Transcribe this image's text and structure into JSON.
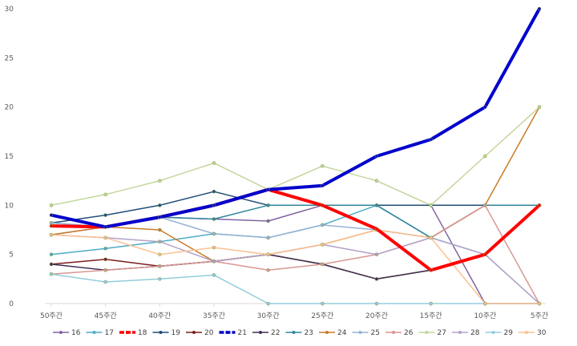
{
  "chart_data": {
    "type": "line",
    "title": "",
    "xlabel": "",
    "ylabel": "",
    "ylim": [
      0,
      30
    ],
    "yticks": [
      0,
      5,
      10,
      15,
      20,
      25,
      30
    ],
    "grid": false,
    "legend": "bottom",
    "categories": [
      "50주간",
      "45주간",
      "40주간",
      "35주간",
      "30주간",
      "25주간",
      "20주간",
      "15주간",
      "10주간",
      "5주간"
    ],
    "series": [
      {
        "name": "16",
        "color": "#8064A2",
        "width": 1.5,
        "values": [
          7,
          7.8,
          8.8,
          8.6,
          8.4,
          10,
          10,
          10,
          0,
          0
        ]
      },
      {
        "name": "17",
        "color": "#4BACC6",
        "width": 1.5,
        "values": [
          5,
          5.6,
          6.3,
          7.1,
          6.7,
          8,
          10,
          6.7,
          5,
          10
        ]
      },
      {
        "name": "18",
        "color": "#FF0000",
        "width": 4,
        "values": [
          7.9,
          7.8,
          8.8,
          10,
          11.6,
          10,
          7.6,
          3.4,
          5,
          10
        ]
      },
      {
        "name": "19",
        "color": "#1F4E79",
        "width": 1.5,
        "values": [
          8.2,
          9,
          10,
          11.4,
          10,
          10,
          10,
          10,
          10,
          10
        ]
      },
      {
        "name": "20",
        "color": "#7B1D1D",
        "width": 1.5,
        "values": [
          4,
          4.5,
          3.8,
          4.3,
          5,
          4,
          2.5,
          3.4,
          5,
          10
        ]
      },
      {
        "name": "21",
        "color": "#0000CC",
        "width": 4,
        "values": [
          9,
          7.8,
          8.8,
          10,
          11.6,
          12,
          15,
          16.7,
          20,
          30
        ]
      },
      {
        "name": "22",
        "color": "#403151",
        "width": 1.5,
        "values": [
          4,
          3.4,
          3.8,
          4.3,
          5,
          4,
          2.5,
          3.4,
          5,
          10
        ]
      },
      {
        "name": "23",
        "color": "#31859C",
        "width": 1.5,
        "values": [
          8.2,
          7.8,
          8.8,
          8.6,
          10,
          10,
          10,
          6.7,
          10,
          10
        ]
      },
      {
        "name": "24",
        "color": "#CC7A29",
        "width": 1.5,
        "values": [
          7,
          7.8,
          7.5,
          4.3,
          5,
          6,
          7.5,
          6.7,
          10,
          20
        ]
      },
      {
        "name": "25",
        "color": "#95B3D7",
        "width": 1.5,
        "values": [
          8.2,
          7.8,
          8.8,
          7.1,
          6.7,
          8,
          7.5,
          6.7,
          5,
          0
        ]
      },
      {
        "name": "26",
        "color": "#D99694",
        "width": 1.5,
        "values": [
          3,
          3.4,
          3.8,
          4.3,
          3.4,
          4,
          5,
          6.7,
          10,
          0
        ]
      },
      {
        "name": "27",
        "color": "#C3D69B",
        "width": 1.5,
        "values": [
          10,
          11.1,
          12.5,
          14.3,
          11.6,
          14,
          12.5,
          10,
          15,
          20
        ]
      },
      {
        "name": "28",
        "color": "#B3A2C7",
        "width": 1.5,
        "values": [
          7,
          6.7,
          6.3,
          4.3,
          5,
          6,
          5,
          6.7,
          5,
          0
        ]
      },
      {
        "name": "29",
        "color": "#93CDDD",
        "width": 1.5,
        "values": [
          3,
          2.2,
          2.5,
          2.9,
          0,
          0,
          0,
          0,
          0,
          0
        ]
      },
      {
        "name": "30",
        "color": "#FAC090",
        "width": 1.5,
        "values": [
          7,
          6.7,
          5,
          5.7,
          5,
          6,
          7.5,
          6.7,
          0,
          0
        ]
      }
    ]
  },
  "colors": {
    "axis": "#D9D9D9",
    "tick_text": "#595959"
  }
}
